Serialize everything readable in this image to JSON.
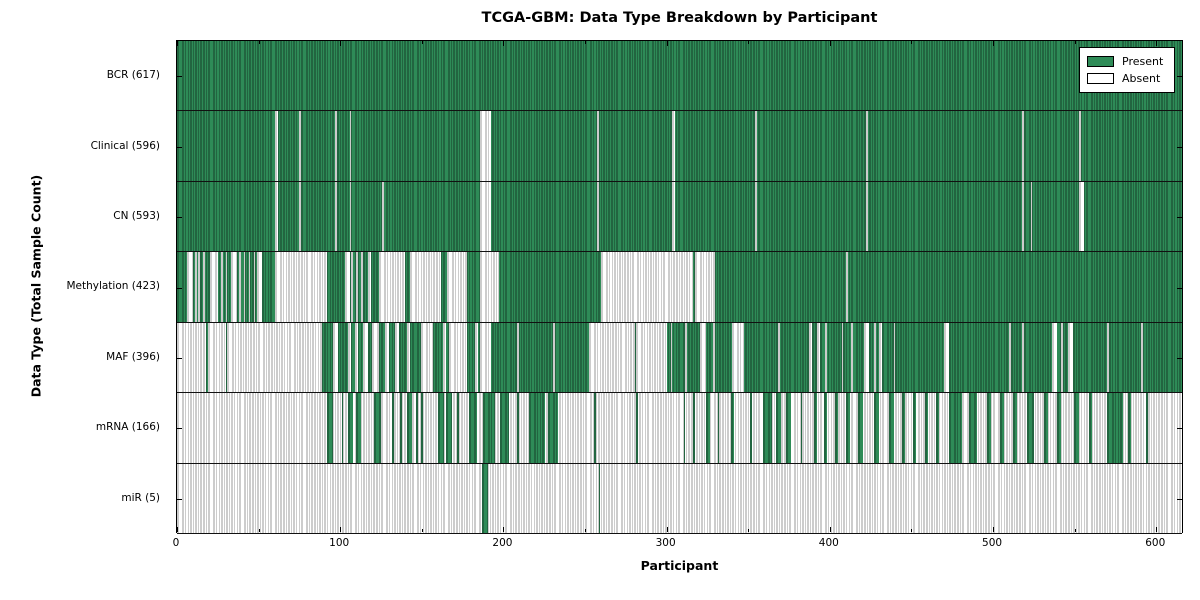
{
  "title": "TCGA-GBM: Data Type Breakdown by Participant",
  "x_axis": {
    "label": "Participant",
    "ticks": [
      0,
      100,
      200,
      300,
      400,
      500,
      600
    ],
    "minor_ticks": [
      50,
      150,
      250,
      350,
      450,
      550
    ],
    "min": 0,
    "max": 617
  },
  "y_axis": {
    "label": "Data Type (Total Sample Count)"
  },
  "legend": {
    "items": [
      {
        "label": "Present",
        "state": "present"
      },
      {
        "label": "Absent",
        "state": "absent"
      }
    ]
  },
  "colors": {
    "present": "#2e8b57",
    "present_edge": "#173f28",
    "absent": "#ffffff",
    "absent_edge": "#9a9a9a",
    "axis": "#000000",
    "background": "#ffffff"
  },
  "chart_data": {
    "type": "heatmap",
    "title": "TCGA-GBM: Data Type Breakdown by Participant",
    "xlabel": "Participant",
    "ylabel": "Data Type (Total Sample Count)",
    "xlim": [
      0,
      617
    ],
    "legend_position": "upper right",
    "note": "Presence/absence matrix: one column per participant (0-616), one row per data type. Each row lists its base state and exception ranges [start,end] inclusive of the opposite state (approximate, read from pixels).",
    "rows": [
      {
        "label": "BCR (617)",
        "data_type": "BCR",
        "count": 617,
        "base": "present",
        "exception_state": "absent",
        "exception_ranges": []
      },
      {
        "label": "Clinical (596)",
        "data_type": "Clinical",
        "count": 596,
        "base": "present",
        "exception_state": "absent",
        "exception_ranges": [
          [
            60,
            61
          ],
          [
            75,
            75
          ],
          [
            97,
            97
          ],
          [
            106,
            106
          ],
          [
            186,
            192
          ],
          [
            258,
            258
          ],
          [
            304,
            305
          ],
          [
            355,
            355
          ],
          [
            423,
            423
          ],
          [
            519,
            519
          ],
          [
            554,
            554
          ]
        ]
      },
      {
        "label": "CN (593)",
        "data_type": "CN",
        "count": 593,
        "base": "present",
        "exception_state": "absent",
        "exception_ranges": [
          [
            60,
            61
          ],
          [
            75,
            75
          ],
          [
            97,
            97
          ],
          [
            106,
            106
          ],
          [
            126,
            126
          ],
          [
            186,
            192
          ],
          [
            258,
            258
          ],
          [
            304,
            305
          ],
          [
            355,
            355
          ],
          [
            423,
            423
          ],
          [
            519,
            519
          ],
          [
            524,
            524
          ],
          [
            554,
            556
          ]
        ]
      },
      {
        "label": "Methylation (423)",
        "data_type": "Methylation",
        "count": 423,
        "base": "present",
        "exception_state": "absent",
        "exception_ranges": [
          [
            6,
            9
          ],
          [
            11,
            11
          ],
          [
            13,
            13
          ],
          [
            16,
            16
          ],
          [
            20,
            24
          ],
          [
            27,
            27
          ],
          [
            30,
            30
          ],
          [
            33,
            36
          ],
          [
            38,
            38
          ],
          [
            41,
            41
          ],
          [
            44,
            44
          ],
          [
            47,
            47
          ],
          [
            49,
            51
          ],
          [
            60,
            91
          ],
          [
            103,
            105
          ],
          [
            107,
            107
          ],
          [
            110,
            110
          ],
          [
            113,
            113
          ],
          [
            117,
            118
          ],
          [
            124,
            139
          ],
          [
            143,
            161
          ],
          [
            166,
            177
          ],
          [
            186,
            197
          ],
          [
            260,
            316
          ],
          [
            318,
            329
          ],
          [
            411,
            411
          ]
        ]
      },
      {
        "label": "MAF (396)",
        "data_type": "MAF",
        "count": 396,
        "base": "present",
        "exception_state": "absent",
        "exception_ranges": [
          [
            0,
            17
          ],
          [
            19,
            29
          ],
          [
            31,
            88
          ],
          [
            96,
            98
          ],
          [
            105,
            106
          ],
          [
            109,
            110
          ],
          [
            114,
            116
          ],
          [
            120,
            123
          ],
          [
            128,
            129
          ],
          [
            134,
            135
          ],
          [
            141,
            142
          ],
          [
            150,
            156
          ],
          [
            163,
            164
          ],
          [
            167,
            177
          ],
          [
            183,
            184
          ],
          [
            186,
            192
          ],
          [
            209,
            209
          ],
          [
            231,
            231
          ],
          [
            253,
            280
          ],
          [
            282,
            300
          ],
          [
            303,
            303
          ],
          [
            312,
            312
          ],
          [
            321,
            324
          ],
          [
            329,
            329
          ],
          [
            341,
            347
          ],
          [
            369,
            369
          ],
          [
            388,
            389
          ],
          [
            393,
            394
          ],
          [
            398,
            398
          ],
          [
            408,
            408
          ],
          [
            414,
            414
          ],
          [
            422,
            424
          ],
          [
            428,
            428
          ],
          [
            431,
            432
          ],
          [
            440,
            440
          ],
          [
            471,
            473
          ],
          [
            511,
            511
          ],
          [
            519,
            519
          ],
          [
            537,
            539
          ],
          [
            543,
            543
          ],
          [
            547,
            549
          ],
          [
            571,
            571
          ],
          [
            592,
            592
          ]
        ]
      },
      {
        "label": "mRNA (166)",
        "data_type": "mRNA",
        "count": 166,
        "base": "absent",
        "exception_state": "present",
        "exception_ranges": [
          [
            92,
            95
          ],
          [
            101,
            101
          ],
          [
            105,
            107
          ],
          [
            110,
            112
          ],
          [
            121,
            124
          ],
          [
            132,
            132
          ],
          [
            137,
            137
          ],
          [
            141,
            143
          ],
          [
            147,
            147
          ],
          [
            150,
            150
          ],
          [
            160,
            163
          ],
          [
            165,
            168
          ],
          [
            172,
            172
          ],
          [
            179,
            183
          ],
          [
            188,
            194
          ],
          [
            198,
            203
          ],
          [
            209,
            209
          ],
          [
            216,
            225
          ],
          [
            228,
            233
          ],
          [
            256,
            256
          ],
          [
            282,
            282
          ],
          [
            311,
            311
          ],
          [
            317,
            317
          ],
          [
            325,
            326
          ],
          [
            332,
            332
          ],
          [
            340,
            341
          ],
          [
            352,
            352
          ],
          [
            360,
            364
          ],
          [
            368,
            370
          ],
          [
            374,
            376
          ],
          [
            383,
            383
          ],
          [
            391,
            392
          ],
          [
            397,
            398
          ],
          [
            404,
            405
          ],
          [
            411,
            412
          ],
          [
            418,
            420
          ],
          [
            428,
            430
          ],
          [
            437,
            439
          ],
          [
            445,
            446
          ],
          [
            452,
            453
          ],
          [
            459,
            460
          ],
          [
            466,
            467
          ],
          [
            474,
            481
          ],
          [
            486,
            490
          ],
          [
            497,
            499
          ],
          [
            505,
            507
          ],
          [
            513,
            515
          ],
          [
            522,
            525
          ],
          [
            532,
            534
          ],
          [
            540,
            542
          ],
          [
            551,
            553
          ],
          [
            560,
            561
          ],
          [
            571,
            580
          ],
          [
            584,
            585
          ],
          [
            595,
            595
          ]
        ]
      },
      {
        "label": "miR (5)",
        "data_type": "miR",
        "count": 5,
        "base": "absent",
        "exception_state": "present",
        "exception_ranges": [
          [
            187,
            190
          ],
          [
            259,
            259
          ]
        ]
      }
    ]
  }
}
